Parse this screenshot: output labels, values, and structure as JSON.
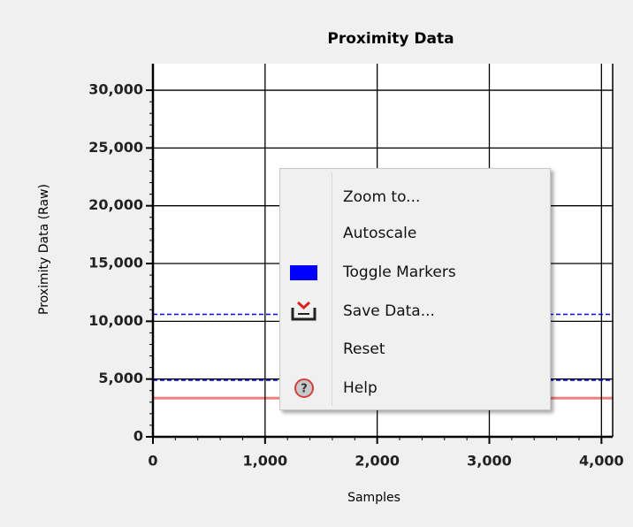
{
  "chart_data": {
    "type": "line",
    "title": "Proximity Data",
    "x_label": "Samples",
    "y_label": "Proximity Data (Raw)",
    "xlim": [
      0,
      4100
    ],
    "ylim": [
      0,
      32300
    ],
    "xticks": [
      0,
      {
        "value": 1000,
        "label": "1,000"
      },
      {
        "value": 2000,
        "label": "2,000"
      },
      {
        "value": 3000,
        "label": "3,000"
      },
      {
        "value": 4000,
        "label": "4,000"
      }
    ],
    "yticks": [
      0,
      {
        "value": 5000,
        "label": "5,000"
      },
      {
        "value": 10000,
        "label": "10,000"
      },
      {
        "value": 15000,
        "label": "15,000"
      },
      {
        "value": 20000,
        "label": "20,000"
      },
      {
        "value": 25000,
        "label": "25,000"
      },
      {
        "value": 30000,
        "label": "30,000"
      }
    ],
    "grid": true,
    "series": [
      {
        "color": "#f08080",
        "x": [
          0,
          4100
        ],
        "values": [
          3350,
          3350
        ]
      }
    ],
    "markers": [
      {
        "value": 10600,
        "color": "#0000ff"
      },
      {
        "value": 4900,
        "color": "#0000ff"
      }
    ]
  },
  "context_menu": {
    "items": [
      "Zoom to...",
      "Autoscale",
      "Toggle Markers",
      "Save Data...",
      "Reset",
      "Help"
    ]
  }
}
